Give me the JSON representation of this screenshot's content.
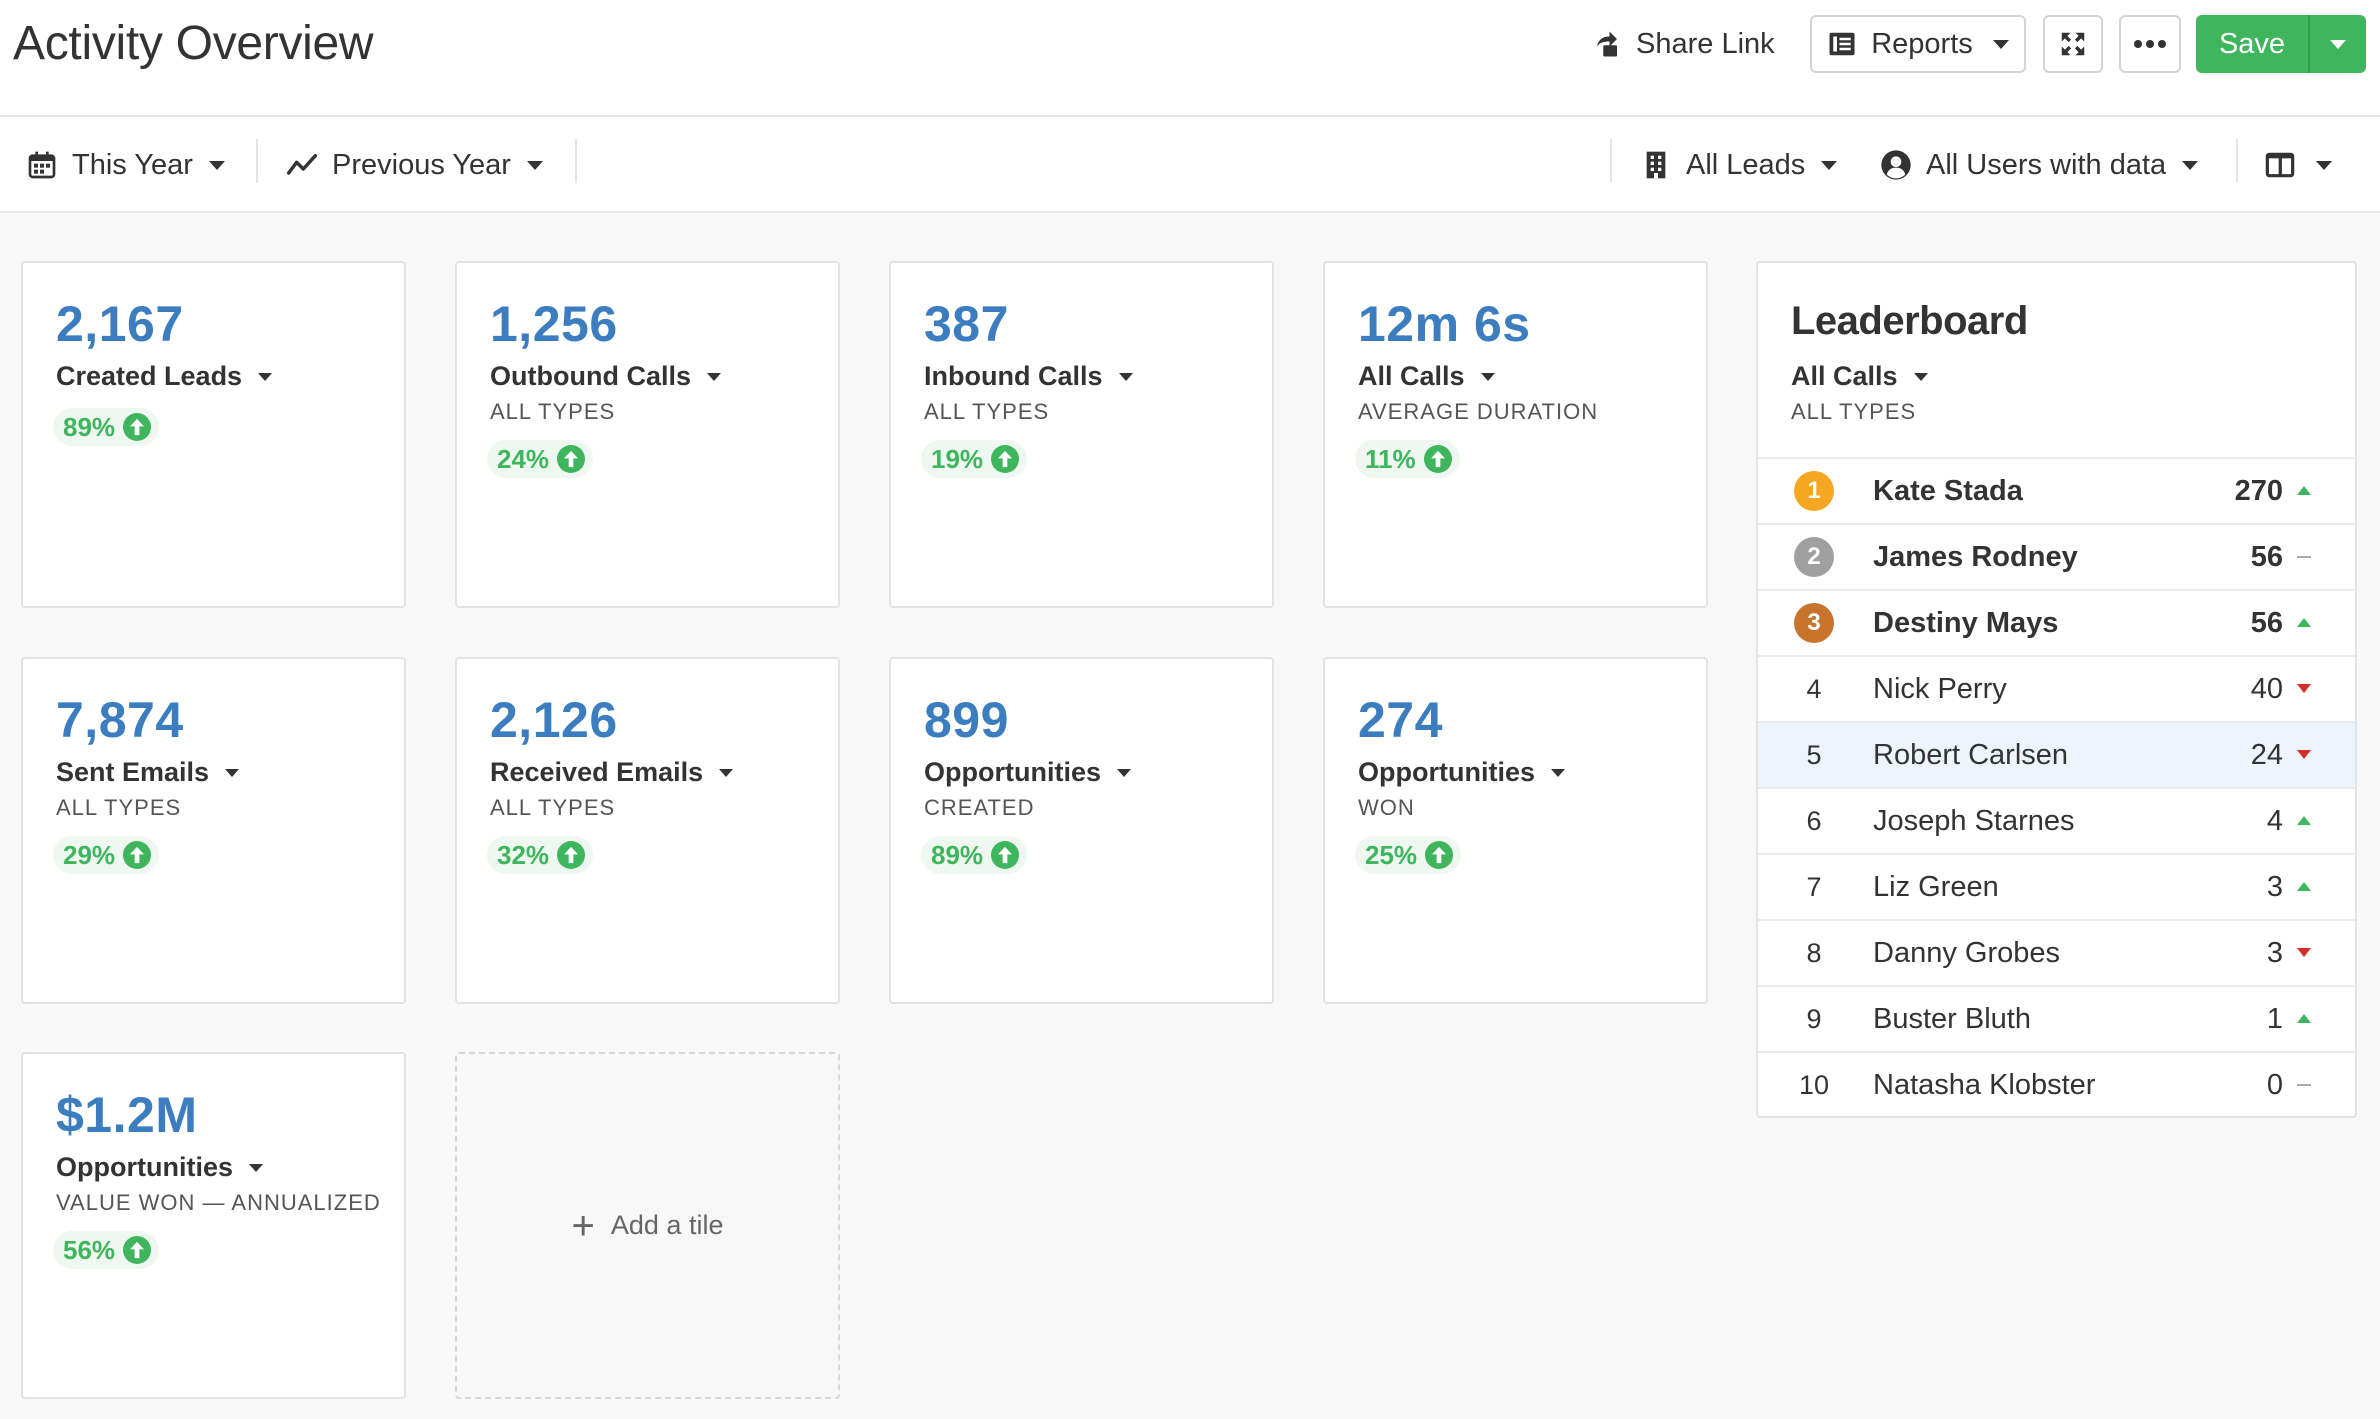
{
  "header": {
    "title": "Activity Overview",
    "share_link_label": "Share Link",
    "reports_label": "Reports",
    "save_label": "Save"
  },
  "filters": {
    "date_range": "This Year",
    "comparison": "Previous Year",
    "leads": "All Leads",
    "users": "All Users with data"
  },
  "tiles": [
    {
      "value": "2,167",
      "label": "Created Leads",
      "sub": "",
      "change": "89%"
    },
    {
      "value": "1,256",
      "label": "Outbound Calls",
      "sub": "ALL TYPES",
      "change": "24%"
    },
    {
      "value": "387",
      "label": "Inbound Calls",
      "sub": "ALL TYPES",
      "change": "19%"
    },
    {
      "value": "12m 6s",
      "label": "All Calls",
      "sub": "AVERAGE DURATION",
      "change": "11%"
    },
    {
      "value": "7,874",
      "label": "Sent Emails",
      "sub": "ALL TYPES",
      "change": "29%"
    },
    {
      "value": "2,126",
      "label": "Received Emails",
      "sub": "ALL TYPES",
      "change": "32%"
    },
    {
      "value": "899",
      "label": "Opportunities",
      "sub": "CREATED",
      "change": "89%"
    },
    {
      "value": "274",
      "label": "Opportunities",
      "sub": "WON",
      "change": "25%"
    },
    {
      "value": "$1.2M",
      "label": "Opportunities",
      "sub": "VALUE WON — ANNUALIZED",
      "change": "56%"
    }
  ],
  "add_tile_label": "Add a tile",
  "leaderboard": {
    "title": "Leaderboard",
    "filter": "All Calls",
    "sub": "ALL TYPES",
    "rows": [
      {
        "rank": "1",
        "name": "Kate Stada",
        "count": "270",
        "trend": "up"
      },
      {
        "rank": "2",
        "name": "James Rodney",
        "count": "56",
        "trend": "flat"
      },
      {
        "rank": "3",
        "name": "Destiny Mays",
        "count": "56",
        "trend": "up"
      },
      {
        "rank": "4",
        "name": "Nick Perry",
        "count": "40",
        "trend": "down"
      },
      {
        "rank": "5",
        "name": "Robert Carlsen",
        "count": "24",
        "trend": "down"
      },
      {
        "rank": "6",
        "name": "Joseph Starnes",
        "count": "4",
        "trend": "up"
      },
      {
        "rank": "7",
        "name": "Liz Green",
        "count": "3",
        "trend": "up"
      },
      {
        "rank": "8",
        "name": "Danny Grobes",
        "count": "3",
        "trend": "down"
      },
      {
        "rank": "9",
        "name": "Buster Bluth",
        "count": "1",
        "trend": "up"
      },
      {
        "rank": "10",
        "name": "Natasha Klobster",
        "count": "0",
        "trend": "flat"
      }
    ]
  },
  "colors": {
    "accent_blue": "#3b7dbf",
    "success_green": "#3fb55d",
    "danger_red": "#d42b2b",
    "gold": "#f5a623",
    "silver": "#a0a0a0",
    "bronze": "#c8742c",
    "highlight_row": "#eef4fb"
  }
}
